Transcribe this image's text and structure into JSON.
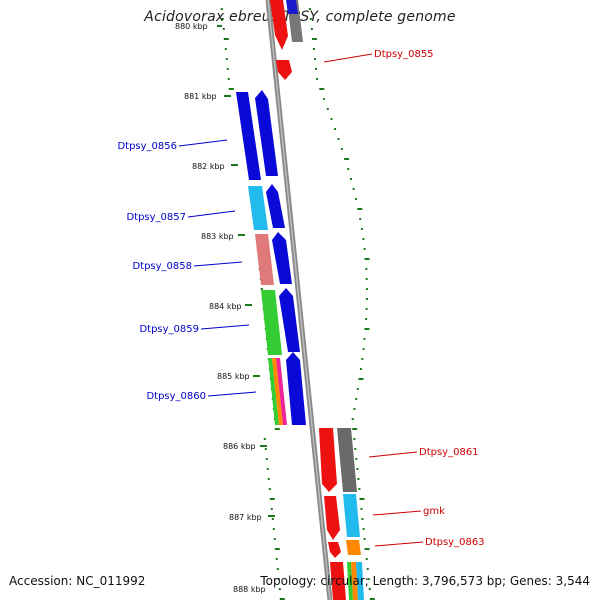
{
  "title": "Acidovorax ebreus TPSY, complete genome",
  "accession": "Accession: NC_011992",
  "topology": "Topology: circular; Length: 3,796,573 bp; Genes: 3,544",
  "colors": {
    "label_left": "#0000cc",
    "label_right": "#cc0000",
    "tick": "#1a7a1a",
    "backbone": "#888888"
  },
  "kbp_labels": [
    "880 kbp",
    "881 kbp",
    "882 kbp",
    "883 kbp",
    "884 kbp",
    "885 kbp",
    "886 kbp",
    "887 kbp",
    "888 kbp"
  ],
  "genes_left": [
    "Dtpsy_0856",
    "Dtpsy_0857",
    "Dtpsy_0858",
    "Dtpsy_0859",
    "Dtpsy_0860"
  ],
  "genes_right": [
    "Dtpsy_0855",
    "Dtpsy_0861",
    "gmk",
    "Dtpsy_0863"
  ]
}
